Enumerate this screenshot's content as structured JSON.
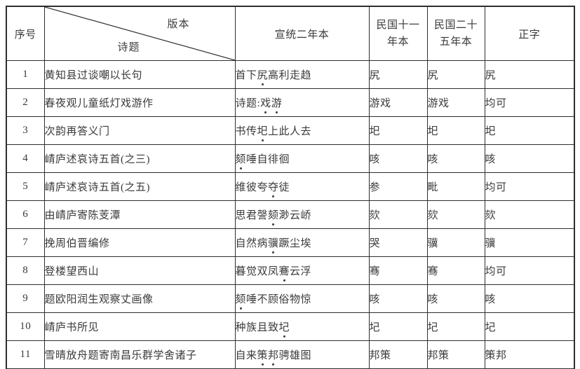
{
  "colors": {
    "border": "#2e2e2e",
    "text": "#3a3a3a",
    "background": "#ffffff"
  },
  "table": {
    "header": {
      "col_index": "序号",
      "diagonal": {
        "top": "版本",
        "bottom": "诗题"
      },
      "col_xuantong": "宣统二年本",
      "col_minguo11_line1": "民国十一",
      "col_minguo11_line2": "年本",
      "col_minguo25_line1": "民国二十",
      "col_minguo25_line2": "五年本",
      "col_zhengzi": "正字"
    },
    "rows": [
      {
        "index": "1",
        "title": "黄知县过谈嘲以长句",
        "phrase": [
          {
            "t": "首下"
          },
          {
            "t": "尻",
            "dot": true
          },
          {
            "t": "高利走趋"
          }
        ],
        "m11": "尻",
        "m25": "尻",
        "zheng": "尻"
      },
      {
        "index": "2",
        "title": "春夜观儿童纸灯戏游作",
        "phrase": [
          {
            "t": "诗题:"
          },
          {
            "t": "戏",
            "dot": true
          },
          {
            "t": "游",
            "dot": true
          }
        ],
        "m11": "游戏",
        "m25": "游戏",
        "zheng": "均可"
      },
      {
        "index": "3",
        "title": "次韵再答义门",
        "phrase": [
          {
            "t": "书传"
          },
          {
            "t": "圯",
            "dot": true
          },
          {
            "t": "上此人去"
          }
        ],
        "m11": "圯",
        "m25": "圯",
        "zheng": "圯"
      },
      {
        "index": "4",
        "title": "崝庐述哀诗五首(之三)",
        "phrase": [
          {
            "t": "颏",
            "dot": true
          },
          {
            "t": "唾自徘徊"
          }
        ],
        "m11": "咳",
        "m25": "咳",
        "zheng": "咳"
      },
      {
        "index": "5",
        "title": "崝庐述哀诗五首(之五)",
        "phrase": [
          {
            "t": "维彼夸"
          },
          {
            "t": "夺",
            "dot": true
          },
          {
            "t": "徒"
          }
        ],
        "m11": "参",
        "m25": "毗",
        "zheng": "均可"
      },
      {
        "index": "6",
        "title": "由崝庐寄陈芰潭",
        "phrase": [
          {
            "t": "思君謦"
          },
          {
            "t": "颏",
            "dot": true
          },
          {
            "t": "渺云峤"
          }
        ],
        "m11": "欬",
        "m25": "欬",
        "zheng": "欬"
      },
      {
        "index": "7",
        "title": "挽周伯晋编修",
        "phrase": [
          {
            "t": "自然病"
          },
          {
            "t": "骥",
            "dot": true
          },
          {
            "t": "蹶尘埃"
          }
        ],
        "m11": "哭",
        "m25": "骥",
        "zheng": "骥"
      },
      {
        "index": "8",
        "title": "登楼望西山",
        "phrase": [
          {
            "t": "暮觉双凤"
          },
          {
            "t": "鶱",
            "dot": true
          },
          {
            "t": "云浮"
          }
        ],
        "m11": "骞",
        "m25": "骞",
        "zheng": "均可"
      },
      {
        "index": "9",
        "title": "题欧阳润生观察丈画像",
        "phrase": [
          {
            "t": "颏",
            "dot": true
          },
          {
            "t": "唾不顾俗物惊"
          }
        ],
        "m11": "咳",
        "m25": "咳",
        "zheng": "咳"
      },
      {
        "index": "10",
        "title": "崝庐书所见",
        "phrase": [
          {
            "t": "种族且致"
          },
          {
            "t": "圮",
            "dot": true
          }
        ],
        "m11": "圮",
        "m25": "圮",
        "zheng": "圮"
      },
      {
        "index": "11",
        "title": "雪晴放舟题寄南昌乐群学舍诸子",
        "phrase": [
          {
            "t": "自来"
          },
          {
            "t": "策",
            "dot": true
          },
          {
            "t": "邦",
            "dot": true
          },
          {
            "t": "骋雄图"
          }
        ],
        "m11": "邦策",
        "m25": "邦策",
        "zheng": "策邦"
      }
    ]
  }
}
